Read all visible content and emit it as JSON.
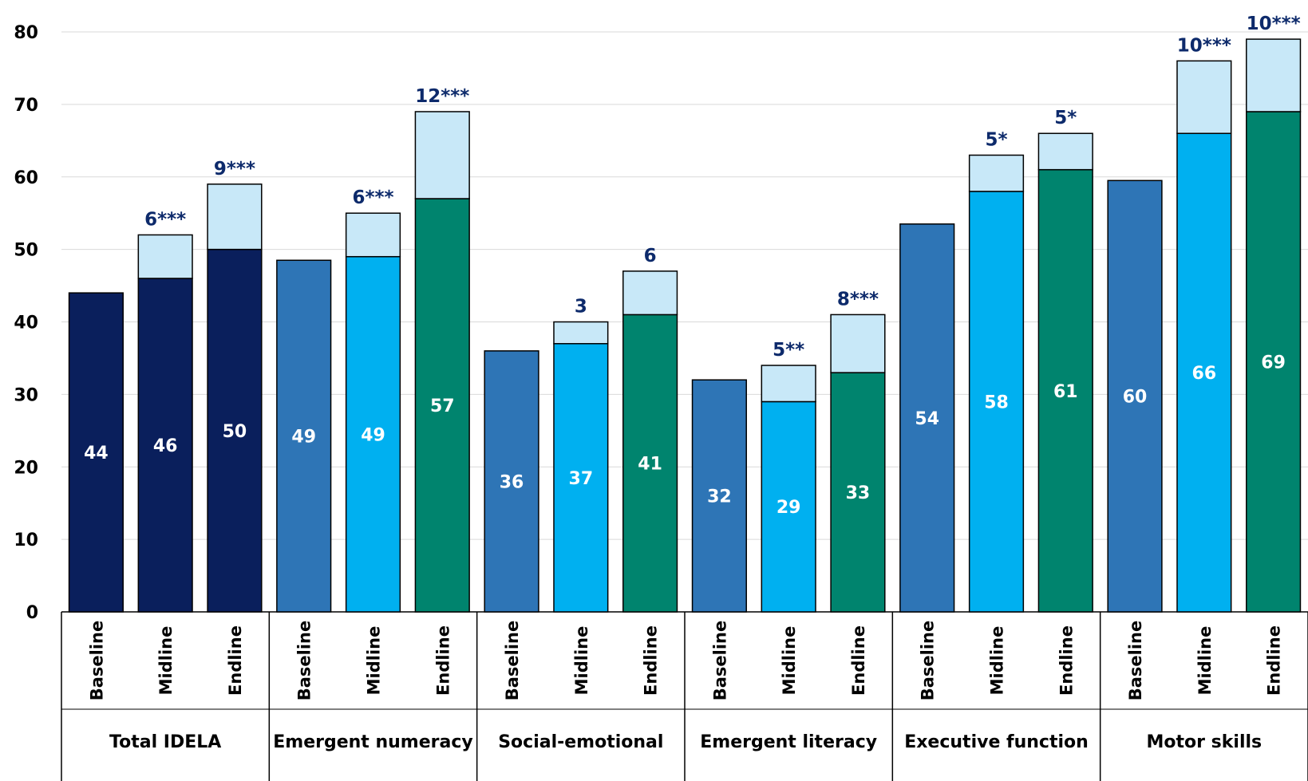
{
  "chart_data": {
    "type": "bar",
    "stacked": true,
    "ylim": [
      0,
      80
    ],
    "yticks": [
      0,
      10,
      20,
      30,
      40,
      50,
      60,
      70,
      80
    ],
    "grid": true,
    "groups": [
      {
        "name": "Total IDELA",
        "bars": [
          {
            "label": "Baseline",
            "value": 44,
            "value_label": "44",
            "gain": null,
            "gain_label": "",
            "color": "#0a1f5c"
          },
          {
            "label": "Midline",
            "value": 46,
            "value_label": "46",
            "gain": 6,
            "gain_label": "6***",
            "color": "#0a1f5c"
          },
          {
            "label": "Endline",
            "value": 50,
            "value_label": "50",
            "gain": 9,
            "gain_label": "9***",
            "color": "#0a1f5c"
          }
        ]
      },
      {
        "name": "Emergent numeracy",
        "bars": [
          {
            "label": "Baseline",
            "value": 48.5,
            "value_label": "49",
            "gain": null,
            "gain_label": "",
            "color": "#2e75b6"
          },
          {
            "label": "Midline",
            "value": 49,
            "value_label": "49",
            "gain": 6,
            "gain_label": "6***",
            "color": "#00b0f0"
          },
          {
            "label": "Endline",
            "value": 57,
            "value_label": "57",
            "gain": 12,
            "gain_label": "12***",
            "color": "#00846e"
          }
        ]
      },
      {
        "name": "Social-emotional",
        "bars": [
          {
            "label": "Baseline",
            "value": 36,
            "value_label": "36",
            "gain": null,
            "gain_label": "",
            "color": "#2e75b6"
          },
          {
            "label": "Midline",
            "value": 37,
            "value_label": "37",
            "gain": 3,
            "gain_label": "3",
            "color": "#00b0f0"
          },
          {
            "label": "Endline",
            "value": 41,
            "value_label": "41",
            "gain": 6,
            "gain_label": "6",
            "color": "#00846e"
          }
        ]
      },
      {
        "name": "Emergent literacy",
        "bars": [
          {
            "label": "Baseline",
            "value": 32,
            "value_label": "32",
            "gain": null,
            "gain_label": "",
            "color": "#2e75b6"
          },
          {
            "label": "Midline",
            "value": 29,
            "value_label": "29",
            "gain": 5,
            "gain_label": "5**",
            "color": "#00b0f0"
          },
          {
            "label": "Endline",
            "value": 33,
            "value_label": "33",
            "gain": 8,
            "gain_label": "8***",
            "color": "#00846e"
          }
        ]
      },
      {
        "name": "Executive function",
        "bars": [
          {
            "label": "Baseline",
            "value": 53.5,
            "value_label": "54",
            "gain": null,
            "gain_label": "",
            "color": "#2e75b6"
          },
          {
            "label": "Midline",
            "value": 58,
            "value_label": "58",
            "gain": 5,
            "gain_label": "5*",
            "color": "#00b0f0"
          },
          {
            "label": "Endline",
            "value": 61,
            "value_label": "61",
            "gain": 5,
            "gain_label": "5*",
            "color": "#00846e"
          }
        ]
      },
      {
        "name": "Motor skills",
        "bars": [
          {
            "label": "Baseline",
            "value": 59.5,
            "value_label": "60",
            "gain": null,
            "gain_label": "",
            "color": "#2e75b6"
          },
          {
            "label": "Midline",
            "value": 66,
            "value_label": "66",
            "gain": 10,
            "gain_label": "10***",
            "color": "#00b0f0"
          },
          {
            "label": "Endline",
            "value": 69,
            "value_label": "69",
            "gain": 10,
            "gain_label": "10***",
            "color": "#00846e"
          }
        ]
      }
    ],
    "colors": {
      "gain_segment": "#c8e8f8",
      "gain_label": "#0d2a6b",
      "value_label": "#ffffff",
      "grid": "#d9d9d9"
    }
  }
}
